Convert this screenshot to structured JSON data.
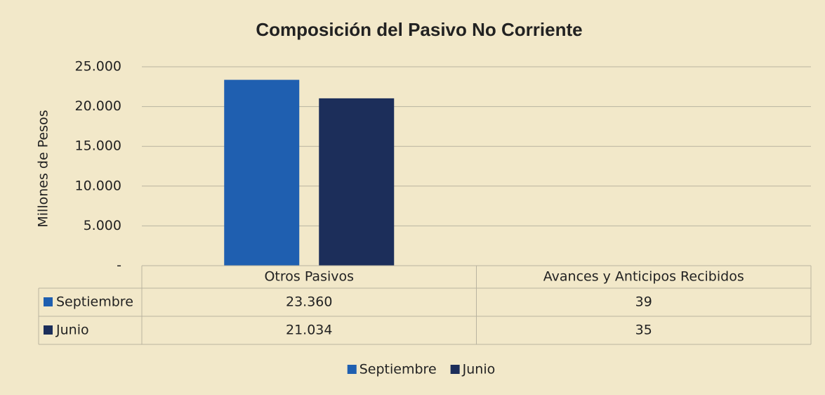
{
  "chart_data": {
    "type": "bar",
    "title": "Composición del Pasivo No Corriente",
    "y_label": "Millones de Pesos",
    "categories": [
      "Otros Pasivos",
      "Avances y Anticipos Recibidos"
    ],
    "series": [
      {
        "name": "Septiembre",
        "color": "#1f5fb0",
        "values": [
          23360,
          39
        ],
        "value_labels": [
          "23.360",
          "39"
        ]
      },
      {
        "name": "Junio",
        "color": "#1c2e5a",
        "values": [
          21034,
          35
        ],
        "value_labels": [
          "21.034",
          "35"
        ]
      }
    ],
    "ylim": [
      0,
      25000
    ],
    "yticks": [
      {
        "value": 0,
        "label": "-"
      },
      {
        "value": 5000,
        "label": "5.000"
      },
      {
        "value": 10000,
        "label": "10.000"
      },
      {
        "value": 15000,
        "label": "15.000"
      },
      {
        "value": 20000,
        "label": "20.000"
      },
      {
        "value": 25000,
        "label": "25.000"
      }
    ],
    "grid": true,
    "legend": "bottom"
  }
}
